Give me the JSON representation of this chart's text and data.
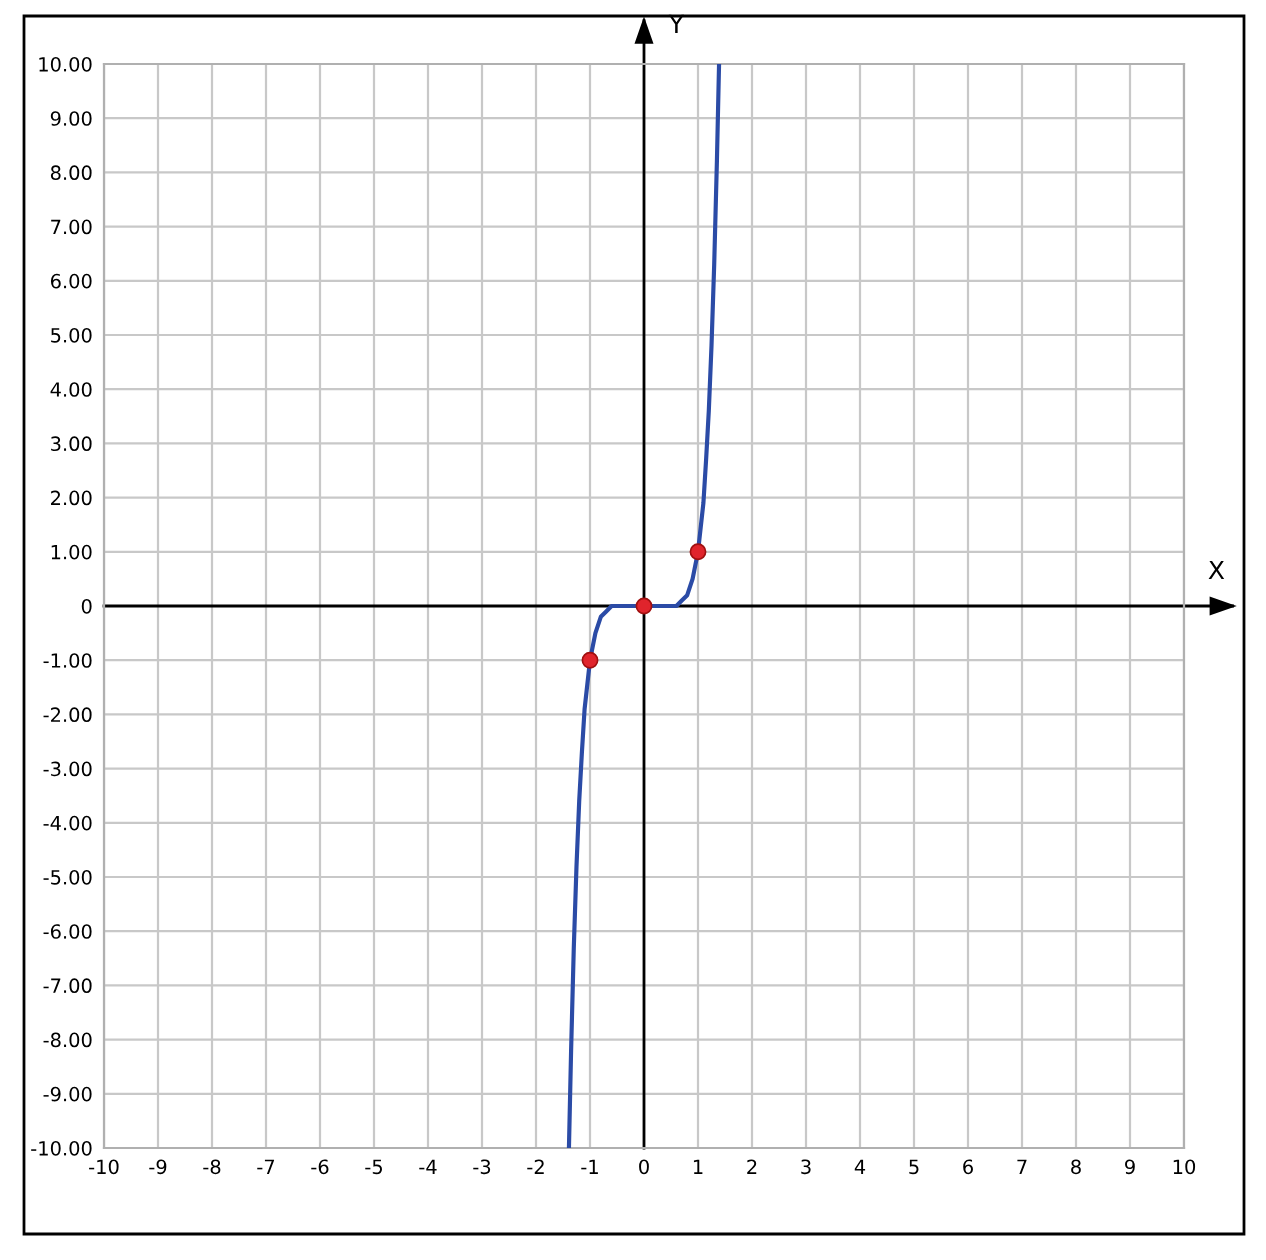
{
  "chart_data": {
    "type": "line",
    "xlabel": "X",
    "ylabel": "Y",
    "xlim": [
      -10,
      10
    ],
    "ylim": [
      -10,
      10
    ],
    "xticks": [
      -10,
      -9,
      -8,
      -7,
      -6,
      -5,
      -4,
      -3,
      -2,
      -1,
      0,
      1,
      2,
      3,
      4,
      5,
      6,
      7,
      8,
      9,
      10
    ],
    "yticks": [
      {
        "value": -10,
        "label": "-10.00"
      },
      {
        "value": -9,
        "label": "-9.00"
      },
      {
        "value": -8,
        "label": "-8.00"
      },
      {
        "value": -7,
        "label": "-7.00"
      },
      {
        "value": -6,
        "label": "-6.00"
      },
      {
        "value": -5,
        "label": "-5.00"
      },
      {
        "value": -4,
        "label": "-4.00"
      },
      {
        "value": -3,
        "label": "-3.00"
      },
      {
        "value": -2,
        "label": "-2.00"
      },
      {
        "value": -1,
        "label": "-1.00"
      },
      0,
      {
        "value": 1,
        "label": "1.00"
      },
      {
        "value": 2,
        "label": "2.00"
      },
      {
        "value": 3,
        "label": "3.00"
      },
      {
        "value": 4,
        "label": "4.00"
      },
      {
        "value": 5,
        "label": "5.00"
      },
      {
        "value": 6,
        "label": "6.00"
      },
      {
        "value": 7,
        "label": "7.00"
      },
      {
        "value": 8,
        "label": "8.00"
      },
      {
        "value": 9,
        "label": "9.00"
      },
      {
        "value": 10,
        "label": "10.00"
      }
    ],
    "grid": true,
    "legend": false,
    "series": [
      {
        "color": "#2b4ba6",
        "marker": "none",
        "line_style": "solid",
        "x": [
          -1.39,
          -1.35,
          -1.3,
          -1.25,
          -1.2,
          -1.15,
          -1.1,
          -1.0,
          -0.9,
          -0.8,
          -0.7,
          -0.6,
          -0.4,
          0,
          0.4,
          0.6,
          0.7,
          0.8,
          0.9,
          1.0,
          1.1,
          1.15,
          1.2,
          1.25,
          1.3,
          1.35,
          1.39
        ],
        "values": [
          -10.0,
          -8.2,
          -6.3,
          -4.8,
          -3.6,
          -2.7,
          -1.9,
          -1.0,
          -0.5,
          -0.2,
          -0.1,
          0.0,
          0.0,
          0.0,
          0.0,
          0.0,
          0.1,
          0.2,
          0.5,
          1.0,
          1.9,
          2.7,
          3.6,
          4.8,
          6.3,
          8.2,
          10.0
        ]
      },
      {
        "type": "scatter",
        "color": "#e0242c",
        "marker": "circle",
        "x": [
          -1,
          0,
          1
        ],
        "values": [
          -1,
          0,
          1
        ]
      }
    ]
  }
}
